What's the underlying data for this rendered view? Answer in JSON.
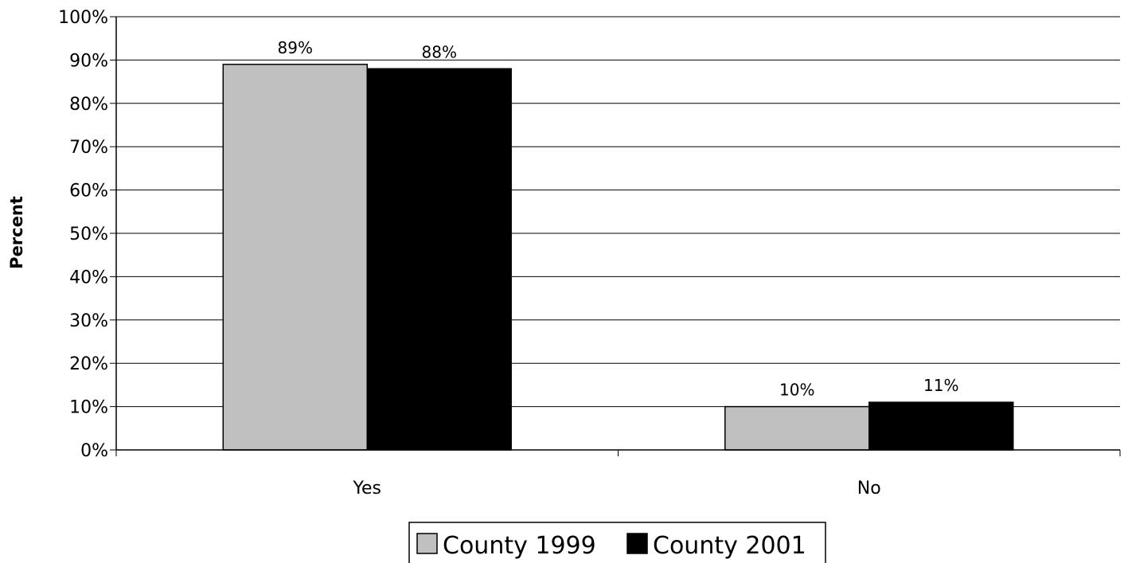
{
  "chart_data": {
    "type": "bar",
    "categories": [
      "Yes",
      "No"
    ],
    "series": [
      {
        "name": "County 1999",
        "values": [
          89,
          10
        ],
        "labels": [
          "89%",
          "10%"
        ],
        "color": "#c0c0c0"
      },
      {
        "name": "County 2001",
        "values": [
          88,
          11
        ],
        "labels": [
          "88%",
          "11%"
        ],
        "color": "#000000"
      }
    ],
    "title": "",
    "xlabel": "",
    "ylabel": "Percent",
    "ylim": [
      0,
      100
    ],
    "yticks": [
      0,
      10,
      20,
      30,
      40,
      50,
      60,
      70,
      80,
      90,
      100
    ],
    "ytick_labels": [
      "0%",
      "10%",
      "20%",
      "30%",
      "40%",
      "50%",
      "60%",
      "70%",
      "80%",
      "90%",
      "100%"
    ],
    "grid": true,
    "legend": "bottom"
  }
}
